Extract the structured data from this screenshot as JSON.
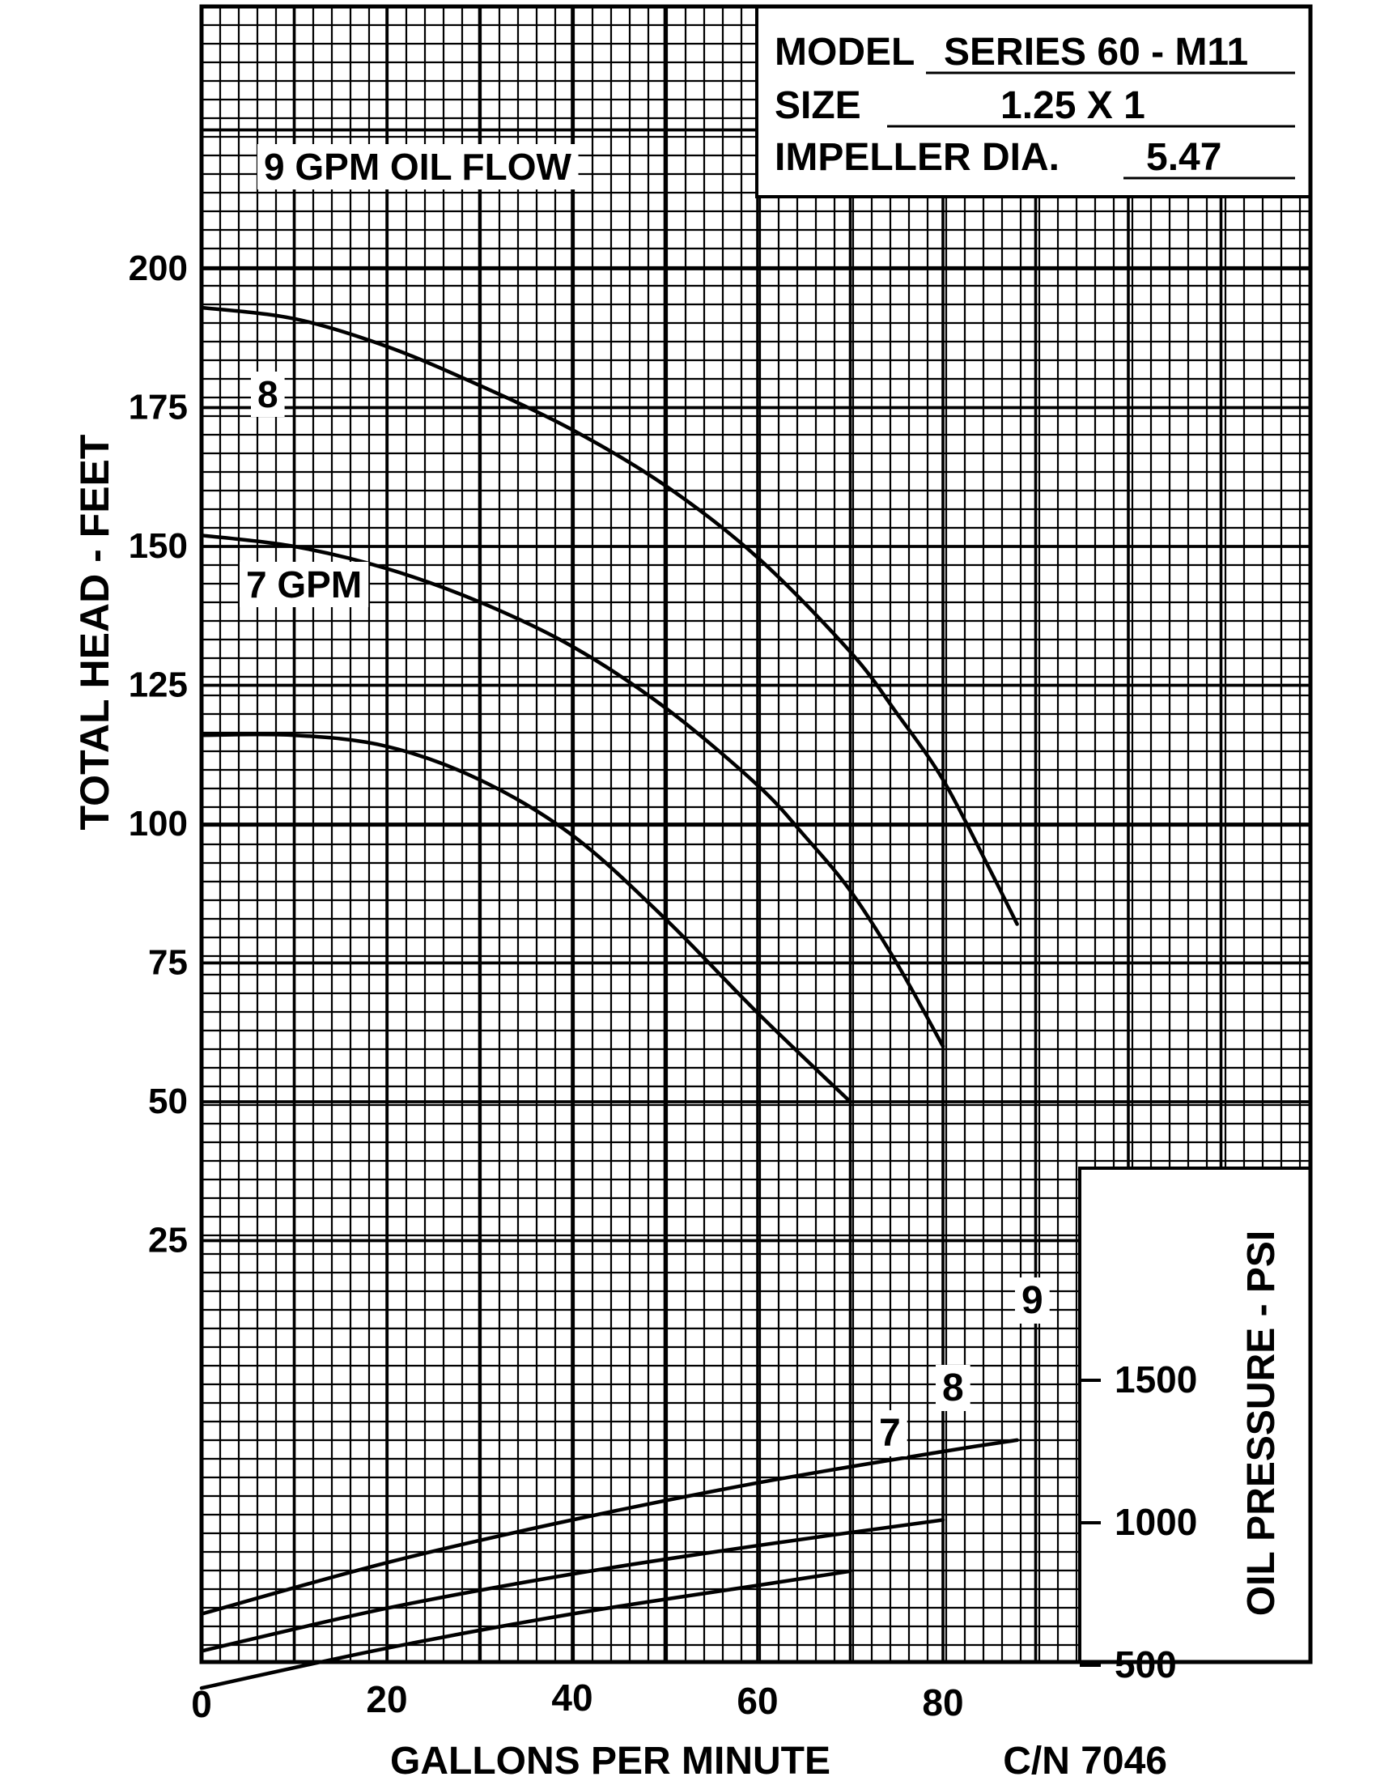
{
  "chart_data": [
    {
      "type": "line",
      "title": "",
      "xlabel": "GALLONS PER MINUTE",
      "ylabel": "TOTAL HEAD - FEET",
      "xlim": [
        0,
        120
      ],
      "ylim": [
        0,
        225
      ],
      "x_ticks": [
        "0",
        "20",
        "40",
        "60",
        "80"
      ],
      "y_ticks": [
        "200",
        "175",
        "150",
        "125",
        "100",
        "75",
        "50",
        "25"
      ],
      "grid": true,
      "series": [
        {
          "name": "9 GPM OIL FLOW",
          "x": [
            0,
            10,
            20,
            30,
            40,
            50,
            60,
            70,
            75,
            80,
            85,
            88
          ],
          "y": [
            193,
            191,
            186,
            179,
            171,
            161,
            148,
            131,
            120,
            108,
            92,
            82
          ]
        },
        {
          "name": "8",
          "x": [
            0,
            10,
            20,
            30,
            40,
            50,
            60,
            65,
            70,
            75,
            80
          ],
          "y": [
            152,
            150,
            146,
            140,
            132,
            121,
            107,
            98,
            88,
            75,
            60
          ]
        },
        {
          "name": "7 GPM",
          "x": [
            0,
            10,
            20,
            30,
            40,
            50,
            60,
            70
          ],
          "y": [
            116,
            116,
            114,
            108,
            98,
            83,
            66,
            50
          ]
        }
      ]
    },
    {
      "type": "line",
      "title": "",
      "xlabel": "GALLONS PER MINUTE",
      "ylabel": "OIL PRESSURE - PSI",
      "xlim": [
        0,
        120
      ],
      "ylim": [
        200,
        1800
      ],
      "y_ticks": [
        "1500",
        "1000",
        "500"
      ],
      "series": [
        {
          "name": "9",
          "x": [
            0,
            20,
            40,
            60,
            80,
            88
          ],
          "y": [
            680,
            860,
            1010,
            1140,
            1250,
            1290
          ]
        },
        {
          "name": "8",
          "x": [
            0,
            20,
            40,
            60,
            80
          ],
          "y": [
            550,
            700,
            820,
            920,
            1010
          ]
        },
        {
          "name": "7",
          "x": [
            0,
            20,
            40,
            60,
            70
          ],
          "y": [
            420,
            560,
            680,
            780,
            830
          ]
        }
      ]
    }
  ],
  "info_box": {
    "model_label": "MODEL",
    "model_value": "SERIES 60 - M11",
    "size_label": "SIZE",
    "size_value": "1.25 X 1",
    "impeller_label": "IMPELLER DIA.",
    "impeller_value": "5.47"
  },
  "footer": {
    "catalog_number": "C/N 7046"
  }
}
